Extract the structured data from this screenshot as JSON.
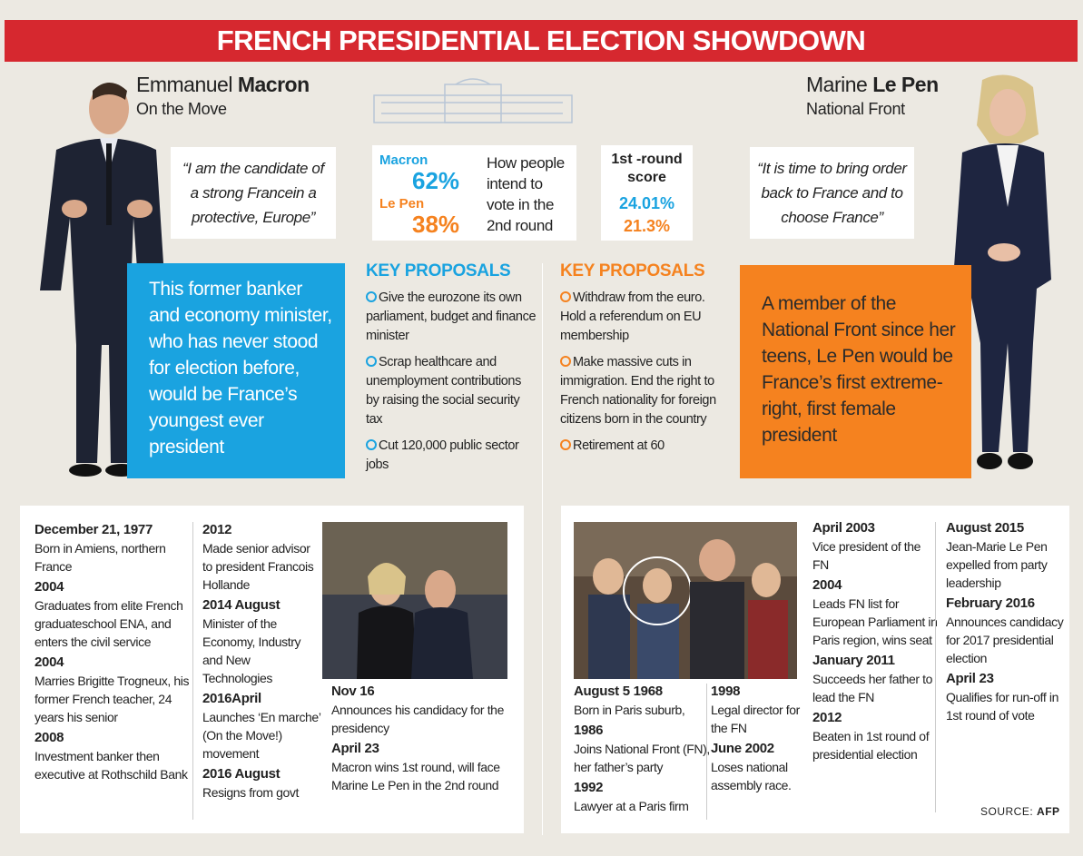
{
  "header": {
    "title": "FRENCH PRESIDENTIAL ELECTION SHOWDOWN"
  },
  "macron": {
    "first_name": "Emmanuel",
    "last_name": "Macron",
    "party": "On the Move",
    "quote": "“I am the candidate of a strong Francein a protective, Europe”",
    "bio": "This former banker and economy minister, who has never stood for election before, would be France’s youngest ever president"
  },
  "lepen": {
    "first_name": "Marine",
    "last_name": "Le Pen",
    "party": "National Front",
    "quote": "“It is time to bring order back to France and to choose France”",
    "bio": "A member of the National Front since her teens, Le Pen would be France’s first extreme-right, first female president"
  },
  "poll": {
    "macron_label": "Macron",
    "macron_value": "62%",
    "lepen_label": "Le Pen",
    "lepen_value": "38%",
    "text": "How people intend to vote in the 2nd round"
  },
  "first_round": {
    "title": "1st -round score",
    "macron_value": "24.01%",
    "lepen_value": "21.3%"
  },
  "proposals": {
    "macron": {
      "title": "KEY PROPOSALS",
      "items": [
        "Give the eurozone its own parliament, budget and finance minister",
        "Scrap healthcare and unemployment contributions by raising the social security tax",
        "Cut 120,000 public sector jobs"
      ]
    },
    "lepen": {
      "title": "KEY PROPOSALS",
      "items": [
        "Withdraw from the euro. Hold a referendum on EU membership",
        "Make massive cuts in immigration. End the right to French nationality for foreign citizens born in the country",
        "Retirement at 60"
      ]
    }
  },
  "timeline": {
    "macron": [
      [
        {
          "date": "December 21, 1977",
          "text": "Born in Amiens, northern France"
        },
        {
          "date": "2004",
          "text": "Graduates from elite French graduateschool ENA, and enters the civil service"
        },
        {
          "date": "2004",
          "text": "Marries Brigitte Trogneux, his former French teacher, 24 years his senior"
        },
        {
          "date": "2008",
          "text": "Investment banker then executive at Rothschild Bank"
        }
      ],
      [
        {
          "date": "2012",
          "text": "Made senior advisor to president Francois Hollande"
        },
        {
          "date": "2014 August",
          "text": "Minister of the Economy, Industry and New Technologies"
        },
        {
          "date": "2016April",
          "text": "Launches ‘En marche’ (On the Move!) movement"
        },
        {
          "date": "2016 August",
          "text": "Resigns from govt"
        }
      ],
      [
        {
          "date": "Nov 16",
          "text": "Announces his candidacy for the presidency"
        },
        {
          "date": "April 23",
          "text": "Macron wins 1st round, will face Marine Le Pen in the 2nd round"
        }
      ]
    ],
    "lepen": [
      [
        {
          "date": "August 5 1968",
          "text": "Born in Paris suburb,"
        },
        {
          "date": "1986",
          "text": "Joins National Front (FN), her father’s party"
        },
        {
          "date": "1992",
          "text": "Lawyer at a Paris firm"
        }
      ],
      [
        {
          "date": "1998",
          "text": "Legal director for the FN"
        },
        {
          "date": "June 2002",
          "text": "Loses national assembly race."
        }
      ],
      [
        {
          "date": "April 2003",
          "text": "Vice president of the FN"
        },
        {
          "date": "2004",
          "text": "Leads FN list for European Parliament in Paris region, wins seat"
        },
        {
          "date": "January 2011",
          "text": "Succeeds her father to lead the FN"
        },
        {
          "date": "2012",
          "text": "Beaten in 1st round of presidential election"
        }
      ],
      [
        {
          "date": "August 2015",
          "text": "Jean-Marie Le Pen expelled from party leadership"
        },
        {
          "date": "February 2016",
          "text": "Announces candidacy for 2017 presidential election"
        },
        {
          "date": "April 23",
          "text": "Qualifies for run-off in 1st round of vote"
        }
      ]
    ]
  },
  "source": {
    "label": "SOURCE:",
    "name": "AFP"
  }
}
